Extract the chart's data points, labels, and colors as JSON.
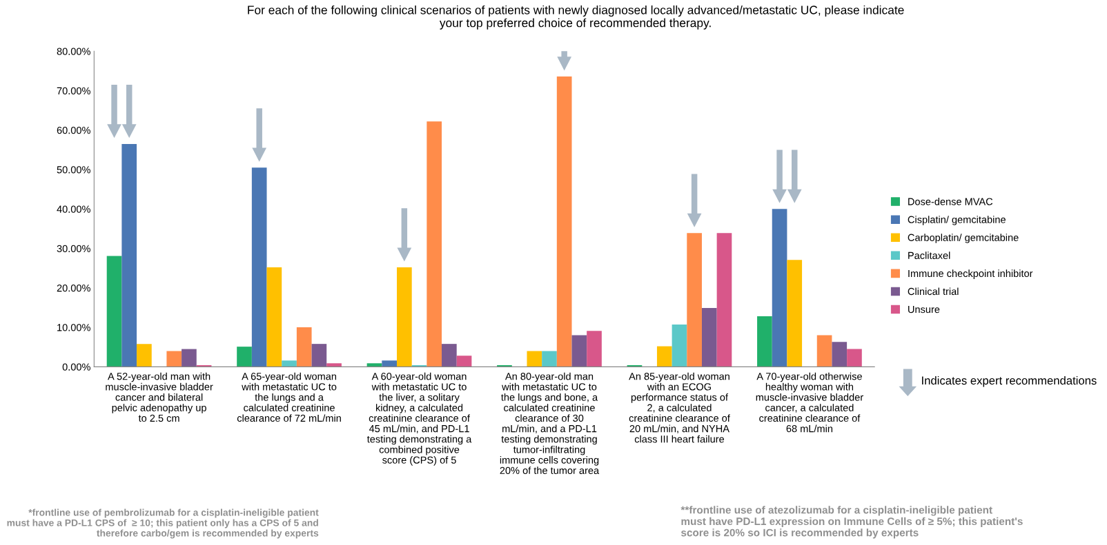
{
  "chart_data": {
    "type": "bar",
    "title": "For each of the following clinical scenarios of patients with newly diagnosed locally advanced/metastatic UC, please indicate\nyour top preferred choice of recommended therapy.",
    "categories": [
      "A 52-year-old man with\nmuscle-invasive bladder\ncancer and bilateral\npelvic adenopathy up\nto 2.5 cm",
      "A 65-year-old woman\nwith metastatic UC to\nthe lungs and a\ncalculated creatinine\nclearance of 72 mL/min",
      "A 60-year-old woman\nwith metastatic UC to\nthe liver, a solitary\nkidney, a calculated\ncreatinine clearance of\n45 mL/min, and PD-L1\ntesting demonstrating a\ncombined positive\nscore (CPS) of 5",
      "An 80-year-old man\nwith metastatic UC to\nthe lungs and bone, a\ncalculated creatinine\nclearance of 30\nmL/min, and a PD-L1\ntesting demonstrating\ntumor-infiltrating\nimmune cells covering\n20% of the tumor area",
      "An 85-year-old woman\nwith an ECOG\nperformance status of\n2, a calculated\ncreatinine clearance of\n20 mL/min, and NYHA\nclass III heart failure",
      "A 70-year-old otherwise\nhealthy woman with\nmuscle-invasive bladder\ncancer, a calculated\ncreatinine clearance of\n68 mL/min"
    ],
    "series": [
      {
        "name": "Dose-dense MVAC",
        "color": "#20b06a",
        "values": [
          28.1,
          5.1,
          0.9,
          0.4,
          0.4,
          12.8
        ]
      },
      {
        "name": "Cisplatin/ gemcitabine",
        "color": "#4a77b4",
        "values": [
          56.5,
          50.5,
          1.6,
          null,
          null,
          40.0
        ]
      },
      {
        "name": "Carboplatin/ gemcitabine",
        "color": "#ffc000",
        "values": [
          5.8,
          25.2,
          25.2,
          4.0,
          5.2,
          27.1
        ]
      },
      {
        "name": "Paclitaxel",
        "color": "#5bc8c8",
        "values": [
          null,
          1.6,
          0.4,
          4.0,
          10.7,
          null
        ]
      },
      {
        "name": "Immune checkpoint inhibitor",
        "color": "#ff8c4a",
        "values": [
          4.0,
          10.0,
          62.2,
          73.6,
          33.9,
          8.0
        ]
      },
      {
        "name": "Clinical trial",
        "color": "#7a5a90",
        "values": [
          4.5,
          5.8,
          5.8,
          8.0,
          14.9,
          6.3
        ]
      },
      {
        "name": "Unsure",
        "color": "#d8578a",
        "values": [
          0.4,
          0.9,
          2.8,
          9.1,
          33.9,
          4.5
        ]
      }
    ],
    "ylim": [
      0,
      80
    ],
    "yticks": [
      {
        "value": 0,
        "label": "0.00%"
      },
      {
        "value": 10,
        "label": "10.00%"
      },
      {
        "value": 20,
        "label": "20.00%"
      },
      {
        "value": 30,
        "label": "30.00%"
      },
      {
        "value": 40,
        "label": "40.00%"
      },
      {
        "value": 50,
        "label": "50.00%"
      },
      {
        "value": 60,
        "label": "60.00%"
      },
      {
        "value": 70,
        "label": "70.00%"
      },
      {
        "value": 80,
        "label": "80.00%"
      }
    ],
    "grid": false,
    "legend": "right",
    "annotations": [
      "Indicates expert recommendations",
      "*frontline use of pembrolizumab for a cisplatin-ineligible patient\nmust have a PD-L1 CPS of  ≥ 10; this patient only has a CPS of 5 and\ntherefore carbo/gem is recommended by experts",
      "**frontline use of atezolizumab for a cisplatin-ineligible patient\nmust have PD-L1 expression on Immune Cells of ≥ 5%; this patient's\nscore is 20% so ICI is recommended by experts"
    ]
  }
}
